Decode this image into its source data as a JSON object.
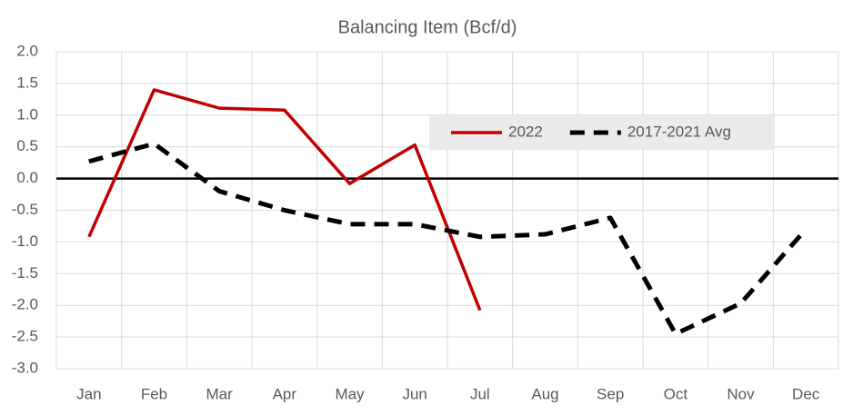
{
  "chart_data": {
    "type": "line",
    "title": "Balancing Item (Bcf/d)",
    "categories": [
      "Jan",
      "Feb",
      "Mar",
      "Apr",
      "May",
      "Jun",
      "Jul",
      "Aug",
      "Sep",
      "Oct",
      "Nov",
      "Dec"
    ],
    "series": [
      {
        "name": "2022",
        "color": "#c00000",
        "dash": false,
        "values": [
          -0.92,
          1.4,
          1.11,
          1.08,
          -0.08,
          0.53,
          -2.08,
          null,
          null,
          null,
          null,
          null
        ]
      },
      {
        "name": "2017-2021 Avg",
        "color": "#000000",
        "dash": true,
        "values": [
          0.27,
          0.55,
          -0.2,
          -0.5,
          -0.72,
          -0.72,
          -0.92,
          -0.88,
          -0.62,
          -2.45,
          -1.97,
          -0.8
        ]
      }
    ],
    "ylim": [
      -3,
      2
    ],
    "yticks": [
      {
        "value": 2,
        "label": "2.0"
      },
      1.5,
      {
        "value": 1,
        "label": "1.0"
      },
      0.5,
      {
        "value": 0,
        "label": "0.0"
      },
      -0.5,
      {
        "value": -1,
        "label": "-1.0"
      },
      -1.5,
      {
        "value": -2,
        "label": "-2.0"
      },
      -2.5,
      {
        "value": -3,
        "label": "-3.0"
      }
    ],
    "grid": true,
    "legend": "top-right"
  }
}
